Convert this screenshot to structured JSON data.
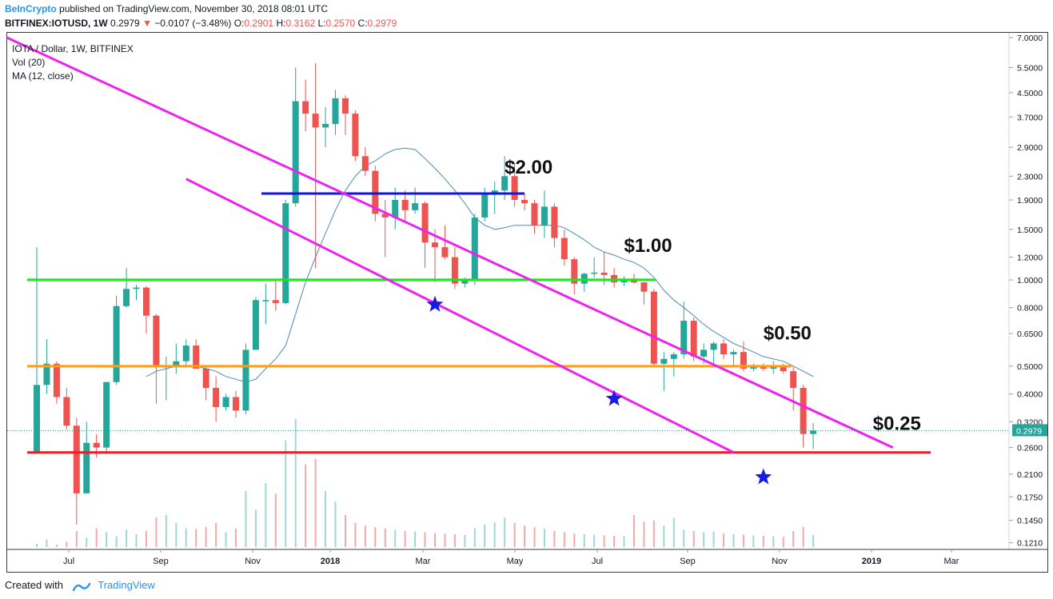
{
  "header": {
    "brand": "BeInCrypto",
    "published": "published on TradingView.com, November 30, 2018 08:01 UTC",
    "symbol": "BITFINEX:IOTUSD, 1W",
    "last": "0.2979",
    "change": "−0.0107 (−3.48%)",
    "ohlc": {
      "o_label": "O:",
      "o": "0.2901",
      "h_label": "H:",
      "h": "0.3162",
      "l_label": "L:",
      "l": "0.2570",
      "c_label": "C:",
      "c": "0.2979"
    }
  },
  "legend": {
    "title": "IOTA / Dollar, 1W, BITFINEX",
    "vol": "Vol (20)",
    "ma": "MA (12, close)"
  },
  "footer": {
    "created": "Created with",
    "brand": "TradingView"
  },
  "chart_data": {
    "type": "candlestick",
    "scale": "log",
    "ylim": [
      0.12,
      7.0
    ],
    "y_ticks": [
      "7.0000",
      "5.5000",
      "4.5000",
      "3.7000",
      "2.9000",
      "2.3000",
      "1.9000",
      "1.5000",
      "1.2000",
      "1.0000",
      "0.8000",
      "0.6500",
      "0.5000",
      "0.4000",
      "0.3200",
      "0.2600",
      "0.2100",
      "0.1750",
      "0.1450",
      "0.1210"
    ],
    "x_ticks": [
      "Jul",
      "Sep",
      "Nov",
      "2018",
      "Mar",
      "May",
      "Jul",
      "Sep",
      "Nov",
      "2019",
      "Mar"
    ],
    "last_price_label": "0.2979",
    "colors": {
      "up": "#26a69a",
      "down": "#ef5350",
      "ma": "#4a8ab8"
    },
    "candles": [
      {
        "o": 0.25,
        "h": 1.3,
        "l": 0.25,
        "c": 0.43
      },
      {
        "o": 0.43,
        "h": 0.62,
        "l": 0.4,
        "c": 0.51
      },
      {
        "o": 0.51,
        "h": 0.52,
        "l": 0.37,
        "c": 0.39
      },
      {
        "o": 0.39,
        "h": 0.42,
        "l": 0.3,
        "c": 0.31
      },
      {
        "o": 0.31,
        "h": 0.33,
        "l": 0.14,
        "c": 0.18
      },
      {
        "o": 0.18,
        "h": 0.32,
        "l": 0.18,
        "c": 0.27
      },
      {
        "o": 0.27,
        "h": 0.29,
        "l": 0.24,
        "c": 0.26
      },
      {
        "o": 0.26,
        "h": 0.44,
        "l": 0.25,
        "c": 0.44
      },
      {
        "o": 0.44,
        "h": 0.88,
        "l": 0.43,
        "c": 0.81
      },
      {
        "o": 0.81,
        "h": 1.1,
        "l": 0.8,
        "c": 0.93
      },
      {
        "o": 0.93,
        "h": 0.96,
        "l": 0.85,
        "c": 0.94
      },
      {
        "o": 0.94,
        "h": 0.95,
        "l": 0.65,
        "c": 0.75
      },
      {
        "o": 0.75,
        "h": 0.76,
        "l": 0.37,
        "c": 0.5
      },
      {
        "o": 0.5,
        "h": 0.54,
        "l": 0.38,
        "c": 0.5
      },
      {
        "o": 0.5,
        "h": 0.6,
        "l": 0.47,
        "c": 0.52
      },
      {
        "o": 0.52,
        "h": 0.62,
        "l": 0.5,
        "c": 0.59
      },
      {
        "o": 0.59,
        "h": 0.62,
        "l": 0.49,
        "c": 0.49
      },
      {
        "o": 0.49,
        "h": 0.5,
        "l": 0.38,
        "c": 0.42
      },
      {
        "o": 0.42,
        "h": 0.46,
        "l": 0.32,
        "c": 0.36
      },
      {
        "o": 0.36,
        "h": 0.4,
        "l": 0.35,
        "c": 0.39
      },
      {
        "o": 0.39,
        "h": 0.41,
        "l": 0.33,
        "c": 0.35
      },
      {
        "o": 0.35,
        "h": 0.6,
        "l": 0.34,
        "c": 0.57
      },
      {
        "o": 0.57,
        "h": 0.87,
        "l": 0.57,
        "c": 0.85
      },
      {
        "o": 0.85,
        "h": 0.97,
        "l": 0.7,
        "c": 0.85
      },
      {
        "o": 0.85,
        "h": 1.0,
        "l": 0.78,
        "c": 0.83
      },
      {
        "o": 0.83,
        "h": 1.9,
        "l": 0.82,
        "c": 1.85
      },
      {
        "o": 1.85,
        "h": 5.5,
        "l": 1.8,
        "c": 4.2
      },
      {
        "o": 4.2,
        "h": 5.0,
        "l": 3.3,
        "c": 3.8
      },
      {
        "o": 3.8,
        "h": 5.7,
        "l": 1.1,
        "c": 3.4
      },
      {
        "o": 3.4,
        "h": 4.0,
        "l": 2.9,
        "c": 3.5
      },
      {
        "o": 3.5,
        "h": 4.6,
        "l": 3.2,
        "c": 4.3
      },
      {
        "o": 4.3,
        "h": 4.4,
        "l": 3.2,
        "c": 3.8
      },
      {
        "o": 3.8,
        "h": 3.9,
        "l": 2.6,
        "c": 2.7
      },
      {
        "o": 2.7,
        "h": 2.9,
        "l": 2.3,
        "c": 2.4
      },
      {
        "o": 2.4,
        "h": 2.5,
        "l": 1.6,
        "c": 1.7
      },
      {
        "o": 1.7,
        "h": 1.9,
        "l": 1.2,
        "c": 1.65
      },
      {
        "o": 1.65,
        "h": 2.1,
        "l": 1.5,
        "c": 1.9
      },
      {
        "o": 1.9,
        "h": 2.05,
        "l": 1.6,
        "c": 1.75
      },
      {
        "o": 1.75,
        "h": 2.1,
        "l": 1.7,
        "c": 1.85
      },
      {
        "o": 1.85,
        "h": 1.88,
        "l": 1.1,
        "c": 1.35
      },
      {
        "o": 1.35,
        "h": 1.5,
        "l": 0.98,
        "c": 1.3
      },
      {
        "o": 1.3,
        "h": 1.55,
        "l": 1.18,
        "c": 1.2
      },
      {
        "o": 1.2,
        "h": 1.3,
        "l": 0.93,
        "c": 0.97
      },
      {
        "o": 0.97,
        "h": 1.02,
        "l": 0.94,
        "c": 1.0
      },
      {
        "o": 1.0,
        "h": 1.7,
        "l": 0.96,
        "c": 1.65
      },
      {
        "o": 1.65,
        "h": 2.1,
        "l": 1.6,
        "c": 2.0
      },
      {
        "o": 2.0,
        "h": 2.2,
        "l": 1.7,
        "c": 2.05
      },
      {
        "o": 2.05,
        "h": 2.7,
        "l": 1.9,
        "c": 2.3
      },
      {
        "o": 2.3,
        "h": 2.55,
        "l": 1.8,
        "c": 1.9
      },
      {
        "o": 1.9,
        "h": 2.0,
        "l": 1.75,
        "c": 1.85
      },
      {
        "o": 1.85,
        "h": 1.9,
        "l": 1.45,
        "c": 1.55
      },
      {
        "o": 1.55,
        "h": 2.05,
        "l": 1.4,
        "c": 1.8
      },
      {
        "o": 1.8,
        "h": 1.85,
        "l": 1.3,
        "c": 1.4
      },
      {
        "o": 1.4,
        "h": 1.5,
        "l": 1.12,
        "c": 1.18
      },
      {
        "o": 1.18,
        "h": 1.2,
        "l": 0.89,
        "c": 0.97
      },
      {
        "o": 0.97,
        "h": 1.06,
        "l": 0.91,
        "c": 1.05
      },
      {
        "o": 1.05,
        "h": 1.2,
        "l": 1.02,
        "c": 1.06
      },
      {
        "o": 1.06,
        "h": 1.25,
        "l": 0.96,
        "c": 1.04
      },
      {
        "o": 1.04,
        "h": 1.1,
        "l": 0.94,
        "c": 0.98
      },
      {
        "o": 0.98,
        "h": 1.03,
        "l": 0.95,
        "c": 1.01
      },
      {
        "o": 1.01,
        "h": 1.05,
        "l": 0.97,
        "c": 0.98
      },
      {
        "o": 0.98,
        "h": 0.98,
        "l": 0.82,
        "c": 0.91
      },
      {
        "o": 0.91,
        "h": 0.93,
        "l": 0.5,
        "c": 0.51
      },
      {
        "o": 0.51,
        "h": 0.56,
        "l": 0.41,
        "c": 0.53
      },
      {
        "o": 0.53,
        "h": 0.56,
        "l": 0.46,
        "c": 0.55
      },
      {
        "o": 0.55,
        "h": 0.84,
        "l": 0.53,
        "c": 0.72
      },
      {
        "o": 0.72,
        "h": 0.74,
        "l": 0.52,
        "c": 0.54
      },
      {
        "o": 0.54,
        "h": 0.6,
        "l": 0.51,
        "c": 0.57
      },
      {
        "o": 0.57,
        "h": 0.61,
        "l": 0.5,
        "c": 0.6
      },
      {
        "o": 0.6,
        "h": 0.62,
        "l": 0.53,
        "c": 0.55
      },
      {
        "o": 0.55,
        "h": 0.57,
        "l": 0.5,
        "c": 0.56
      },
      {
        "o": 0.56,
        "h": 0.61,
        "l": 0.48,
        "c": 0.49
      },
      {
        "o": 0.49,
        "h": 0.51,
        "l": 0.48,
        "c": 0.5
      },
      {
        "o": 0.5,
        "h": 0.51,
        "l": 0.48,
        "c": 0.49
      },
      {
        "o": 0.49,
        "h": 0.52,
        "l": 0.47,
        "c": 0.5
      },
      {
        "o": 0.5,
        "h": 0.51,
        "l": 0.47,
        "c": 0.48
      },
      {
        "o": 0.48,
        "h": 0.5,
        "l": 0.35,
        "c": 0.42
      },
      {
        "o": 0.42,
        "h": 0.43,
        "l": 0.26,
        "c": 0.29
      },
      {
        "o": 0.29,
        "h": 0.316,
        "l": 0.257,
        "c": 0.2979
      }
    ],
    "ma": [
      null,
      null,
      null,
      null,
      null,
      null,
      null,
      null,
      null,
      null,
      null,
      0.46,
      0.48,
      0.49,
      0.5,
      0.5,
      0.5,
      0.49,
      0.48,
      0.46,
      0.45,
      0.44,
      0.45,
      0.49,
      0.53,
      0.59,
      0.76,
      0.98,
      1.2,
      1.45,
      1.75,
      2.05,
      2.3,
      2.5,
      2.6,
      2.75,
      2.85,
      2.88,
      2.85,
      2.65,
      2.45,
      2.25,
      2.05,
      1.85,
      1.65,
      1.55,
      1.5,
      1.52,
      1.55,
      1.55,
      1.55,
      1.55,
      1.55,
      1.52,
      1.45,
      1.38,
      1.3,
      1.25,
      1.22,
      1.18,
      1.15,
      1.1,
      1.02,
      0.92,
      0.85,
      0.8,
      0.75,
      0.7,
      0.66,
      0.63,
      0.6,
      0.58,
      0.56,
      0.54,
      0.53,
      0.52,
      0.5,
      0.48,
      0.46
    ],
    "volume": [
      12,
      28,
      9,
      20,
      60,
      35,
      70,
      55,
      40,
      65,
      48,
      60,
      110,
      120,
      90,
      70,
      68,
      75,
      90,
      55,
      70,
      210,
      140,
      240,
      200,
      400,
      480,
      310,
      330,
      210,
      170,
      120,
      90,
      80,
      75,
      70,
      65,
      60,
      58,
      55,
      52,
      50,
      48,
      45,
      70,
      85,
      92,
      110,
      90,
      80,
      75,
      68,
      60,
      55,
      50,
      48,
      46,
      44,
      42,
      40,
      120,
      95,
      100,
      80,
      110,
      65,
      60,
      55,
      58,
      52,
      48,
      46,
      44,
      42,
      40,
      38,
      60,
      75,
      45
    ],
    "horizontal_lines": [
      {
        "price": 2.0,
        "color": "#1515d8"
      },
      {
        "price": 1.0,
        "color": "#22e022"
      },
      {
        "price": 0.5,
        "color": "#ff9e16"
      },
      {
        "price": 0.25,
        "color": "#ee1c24"
      }
    ],
    "trendlines": [
      {
        "from": [
          -3,
          7.0
        ],
        "to": [
          86,
          0.26
        ],
        "color": "#ee22ee"
      },
      {
        "from": [
          15,
          2.25
        ],
        "to": [
          70,
          0.25
        ],
        "color": "#ee22ee"
      }
    ],
    "annotations": [
      {
        "text": "$2.00",
        "idx": 47,
        "price": 2.35
      },
      {
        "text": "$1.00",
        "idx": 59,
        "price": 1.25
      },
      {
        "text": "$0.50",
        "idx": 73,
        "price": 0.62
      },
      {
        "text": "$0.25",
        "idx": 84,
        "price": 0.3
      }
    ],
    "stars": [
      {
        "idx": 40,
        "price": 0.82
      },
      {
        "idx": 58,
        "price": 0.385
      },
      {
        "idx": 73,
        "price": 0.205
      }
    ]
  }
}
